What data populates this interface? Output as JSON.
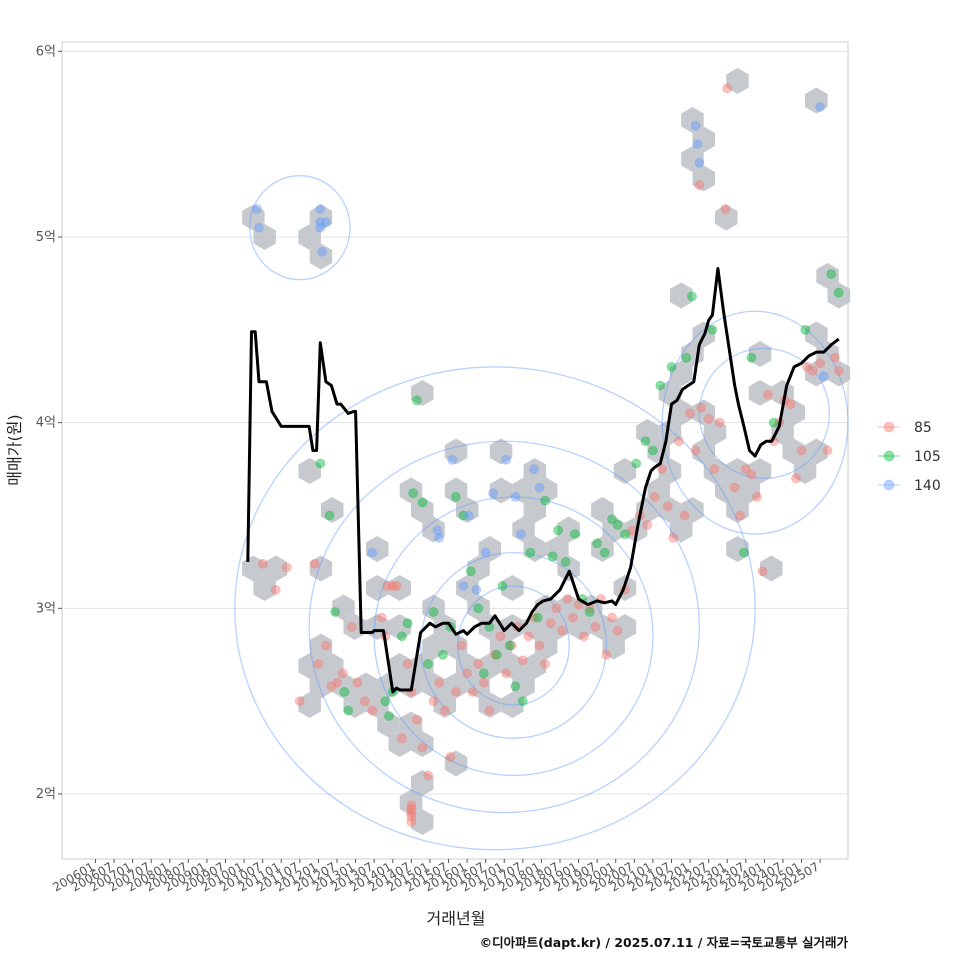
{
  "chart_data": {
    "type": "scatter",
    "title": "",
    "xlabel": "거래년월",
    "ylabel": "매매가(원)",
    "caption": "©디아파트(dapt.kr) / 2025.07.11 / 자료=국토교통부 실거래가",
    "x_ticks": [
      "200601",
      "200607",
      "200701",
      "200707",
      "200801",
      "200807",
      "200901",
      "200907",
      "201001",
      "201007",
      "201101",
      "201107",
      "201201",
      "201207",
      "201301",
      "201307",
      "201401",
      "201407",
      "201501",
      "201507",
      "201601",
      "201607",
      "201701",
      "201707",
      "201801",
      "201807",
      "201901",
      "201907",
      "202001",
      "202007",
      "202101",
      "202107",
      "202201",
      "202207",
      "202301",
      "202307",
      "202401",
      "202407",
      "202501",
      "202507"
    ],
    "y_ticks": [
      {
        "value": 2,
        "label": "2억"
      },
      {
        "value": 3,
        "label": "3억"
      },
      {
        "value": 4,
        "label": "4억"
      },
      {
        "value": 5,
        "label": "5억"
      },
      {
        "value": 6,
        "label": "6억"
      }
    ],
    "ylim": [
      1.65,
      6.05
    ],
    "xlim_index": [
      -1.8,
      40.5
    ],
    "legend": {
      "position": "right",
      "entries": [
        {
          "label": "85",
          "color": "#F8766D"
        },
        {
          "label": "105",
          "color": "#00BA38"
        },
        {
          "label": "140",
          "color": "#619CFF"
        }
      ]
    },
    "trend_line": {
      "name": "moving average",
      "color": "#000000",
      "x": [
        8.2,
        8.4,
        8.6,
        8.8,
        9.2,
        9.5,
        10.0,
        11.5,
        11.7,
        11.9,
        12.1,
        12.4,
        12.7,
        13.0,
        13.2,
        13.6,
        13.9,
        14.0,
        14.3,
        14.6,
        14.9,
        15.0,
        15.2,
        15.5,
        16.0,
        16.2,
        16.4,
        16.6,
        17.0,
        17.5,
        18.0,
        18.3,
        18.7,
        19.0,
        19.4,
        19.8,
        20.0,
        20.4,
        20.8,
        21.2,
        21.5,
        22.0,
        22.4,
        22.8,
        23.2,
        23.5,
        23.8,
        24.1,
        24.5,
        25.0,
        25.5,
        26.0,
        26.5,
        27.0,
        27.4,
        27.8,
        28.0,
        28.4,
        28.8,
        29.2,
        29.6,
        29.9,
        30.1,
        30.4,
        30.7,
        31.0,
        31.3,
        31.6,
        31.9,
        32.2,
        32.5,
        32.8,
        33.0,
        33.2,
        33.5,
        33.8,
        34.1,
        34.4,
        34.6,
        34.9,
        35.2,
        35.5,
        35.8,
        36.1,
        36.4,
        36.8,
        37.2,
        37.6,
        38.0,
        38.4,
        38.8,
        39.2,
        39.6,
        40.0
      ],
      "y": [
        3.25,
        4.49,
        4.49,
        4.22,
        4.22,
        4.06,
        3.98,
        3.98,
        3.85,
        3.85,
        4.43,
        4.22,
        4.2,
        4.1,
        4.1,
        4.05,
        4.06,
        4.06,
        2.87,
        2.87,
        2.87,
        2.88,
        2.88,
        2.88,
        2.55,
        2.57,
        2.56,
        2.56,
        2.56,
        2.87,
        2.92,
        2.9,
        2.92,
        2.92,
        2.86,
        2.88,
        2.86,
        2.9,
        2.92,
        2.92,
        2.96,
        2.88,
        2.92,
        2.88,
        2.92,
        2.98,
        3.02,
        3.04,
        3.05,
        3.1,
        3.2,
        3.05,
        3.02,
        3.04,
        3.03,
        3.04,
        3.02,
        3.1,
        3.22,
        3.45,
        3.65,
        3.74,
        3.76,
        3.78,
        3.9,
        4.1,
        4.12,
        4.18,
        4.2,
        4.22,
        4.42,
        4.48,
        4.55,
        4.58,
        4.83,
        4.6,
        4.4,
        4.2,
        4.1,
        3.98,
        3.85,
        3.82,
        3.88,
        3.9,
        3.9,
        3.98,
        4.2,
        4.3,
        4.32,
        4.36,
        4.38,
        4.38,
        4.42,
        4.45
      ]
    },
    "series": [
      {
        "name": "85",
        "points": [
          [
            9.0,
            3.24
          ],
          [
            9.7,
            3.1
          ],
          [
            10.3,
            3.22
          ],
          [
            11.0,
            2.5
          ],
          [
            11.8,
            3.24
          ],
          [
            12.0,
            2.7
          ],
          [
            12.4,
            2.8
          ],
          [
            12.7,
            2.58
          ],
          [
            13.0,
            2.6
          ],
          [
            13.3,
            2.65
          ],
          [
            13.8,
            2.9
          ],
          [
            14.1,
            2.6
          ],
          [
            14.5,
            2.5
          ],
          [
            14.9,
            2.45
          ],
          [
            15.4,
            2.95
          ],
          [
            15.6,
            2.85
          ],
          [
            15.7,
            3.12
          ],
          [
            16.0,
            3.12
          ],
          [
            16.2,
            3.12
          ],
          [
            16.5,
            2.3
          ],
          [
            16.8,
            2.7
          ],
          [
            17.0,
            2.55
          ],
          [
            17.3,
            2.4
          ],
          [
            17.6,
            2.25
          ],
          [
            17.9,
            2.1
          ],
          [
            18.2,
            2.5
          ],
          [
            18.5,
            2.6
          ],
          [
            18.8,
            2.45
          ],
          [
            19.1,
            2.2
          ],
          [
            19.4,
            2.55
          ],
          [
            19.7,
            2.8
          ],
          [
            20.0,
            2.65
          ],
          [
            20.3,
            2.55
          ],
          [
            20.6,
            2.7
          ],
          [
            20.9,
            2.6
          ],
          [
            21.2,
            2.45
          ],
          [
            21.5,
            2.75
          ],
          [
            21.8,
            2.85
          ],
          [
            22.1,
            2.65
          ],
          [
            22.4,
            2.8
          ],
          [
            22.7,
            2.9
          ],
          [
            23.0,
            2.72
          ],
          [
            23.3,
            2.85
          ],
          [
            23.6,
            2.95
          ],
          [
            23.9,
            2.8
          ],
          [
            24.2,
            2.7
          ],
          [
            24.5,
            2.92
          ],
          [
            24.8,
            3.0
          ],
          [
            25.1,
            2.88
          ],
          [
            25.4,
            3.05
          ],
          [
            25.7,
            2.95
          ],
          [
            26.0,
            3.02
          ],
          [
            26.3,
            2.85
          ],
          [
            26.6,
            3.0
          ],
          [
            26.9,
            2.9
          ],
          [
            27.2,
            3.05
          ],
          [
            27.5,
            2.75
          ],
          [
            27.8,
            2.95
          ],
          [
            28.1,
            2.88
          ],
          [
            28.5,
            3.1
          ],
          [
            28.9,
            3.42
          ],
          [
            29.3,
            3.5
          ],
          [
            29.7,
            3.45
          ],
          [
            30.1,
            3.6
          ],
          [
            30.5,
            3.75
          ],
          [
            30.8,
            3.55
          ],
          [
            31.1,
            3.38
          ],
          [
            31.4,
            3.9
          ],
          [
            31.7,
            3.5
          ],
          [
            32.0,
            4.05
          ],
          [
            32.3,
            3.85
          ],
          [
            32.6,
            4.08
          ],
          [
            33.0,
            4.02
          ],
          [
            33.3,
            3.75
          ],
          [
            33.6,
            4.0
          ],
          [
            33.9,
            5.15
          ],
          [
            34.0,
            5.8
          ],
          [
            32.5,
            5.28
          ],
          [
            34.4,
            3.65
          ],
          [
            34.7,
            3.5
          ],
          [
            35.0,
            3.75
          ],
          [
            35.3,
            3.72
          ],
          [
            35.6,
            3.6
          ],
          [
            35.9,
            3.2
          ],
          [
            36.2,
            4.15
          ],
          [
            36.5,
            3.9
          ],
          [
            36.8,
            4.0
          ],
          [
            37.1,
            4.12
          ],
          [
            37.4,
            4.1
          ],
          [
            37.7,
            3.7
          ],
          [
            38.0,
            3.85
          ],
          [
            38.3,
            4.3
          ],
          [
            38.6,
            4.28
          ],
          [
            39.0,
            4.32
          ],
          [
            39.4,
            3.85
          ],
          [
            39.8,
            4.35
          ],
          [
            40.0,
            4.28
          ],
          [
            17.0,
            1.85
          ],
          [
            17.0,
            1.88
          ],
          [
            17.0,
            1.9
          ],
          [
            17.0,
            1.92
          ],
          [
            17.0,
            1.94
          ]
        ]
      },
      {
        "name": "105",
        "points": [
          [
            12.1,
            3.78
          ],
          [
            12.6,
            3.5
          ],
          [
            12.9,
            2.98
          ],
          [
            13.4,
            2.55
          ],
          [
            13.6,
            2.45
          ],
          [
            15.8,
            2.42
          ],
          [
            15.6,
            2.5
          ],
          [
            16.0,
            2.55
          ],
          [
            16.5,
            2.85
          ],
          [
            16.8,
            2.92
          ],
          [
            17.1,
            3.62
          ],
          [
            17.3,
            4.12
          ],
          [
            17.6,
            3.57
          ],
          [
            17.9,
            2.7
          ],
          [
            18.2,
            2.98
          ],
          [
            18.7,
            2.75
          ],
          [
            19.1,
            2.9
          ],
          [
            19.4,
            3.6
          ],
          [
            19.8,
            3.5
          ],
          [
            20.2,
            3.2
          ],
          [
            20.6,
            3.0
          ],
          [
            20.9,
            2.65
          ],
          [
            21.2,
            2.9
          ],
          [
            21.6,
            2.75
          ],
          [
            21.9,
            3.12
          ],
          [
            22.3,
            2.8
          ],
          [
            22.6,
            2.58
          ],
          [
            23.0,
            2.5
          ],
          [
            23.4,
            3.3
          ],
          [
            23.8,
            2.95
          ],
          [
            24.2,
            3.58
          ],
          [
            24.6,
            3.28
          ],
          [
            24.9,
            3.42
          ],
          [
            25.3,
            3.25
          ],
          [
            25.8,
            3.4
          ],
          [
            26.2,
            3.05
          ],
          [
            26.6,
            2.98
          ],
          [
            27.0,
            3.35
          ],
          [
            27.4,
            3.3
          ],
          [
            27.8,
            3.48
          ],
          [
            28.1,
            3.45
          ],
          [
            28.5,
            3.4
          ],
          [
            29.1,
            3.78
          ],
          [
            29.6,
            3.9
          ],
          [
            30.0,
            3.85
          ],
          [
            30.4,
            4.2
          ],
          [
            31.0,
            4.3
          ],
          [
            32.1,
            4.68
          ],
          [
            31.8,
            4.35
          ],
          [
            33.2,
            4.5
          ],
          [
            34.9,
            3.3
          ],
          [
            35.3,
            4.35
          ],
          [
            36.5,
            4.0
          ],
          [
            38.2,
            4.5
          ],
          [
            39.6,
            4.8
          ],
          [
            40.0,
            4.7
          ]
        ]
      },
      {
        "name": "140",
        "points": [
          [
            8.7,
            5.15
          ],
          [
            8.8,
            5.05
          ],
          [
            12.1,
            5.15
          ],
          [
            12.1,
            5.08
          ],
          [
            12.1,
            5.05
          ],
          [
            12.2,
            4.92
          ],
          [
            12.4,
            5.08
          ],
          [
            14.9,
            3.3
          ],
          [
            18.5,
            3.38
          ],
          [
            18.4,
            3.42
          ],
          [
            19.2,
            3.8
          ],
          [
            19.8,
            3.12
          ],
          [
            20.1,
            3.5
          ],
          [
            20.5,
            3.1
          ],
          [
            21.0,
            3.3
          ],
          [
            21.4,
            3.62
          ],
          [
            22.1,
            3.8
          ],
          [
            22.6,
            3.6
          ],
          [
            22.9,
            3.4
          ],
          [
            23.6,
            3.75
          ],
          [
            23.9,
            3.65
          ],
          [
            32.3,
            5.6
          ],
          [
            32.4,
            5.5
          ],
          [
            32.5,
            5.4
          ],
          [
            39.0,
            5.7
          ],
          [
            39.2,
            4.25
          ]
        ]
      }
    ]
  }
}
